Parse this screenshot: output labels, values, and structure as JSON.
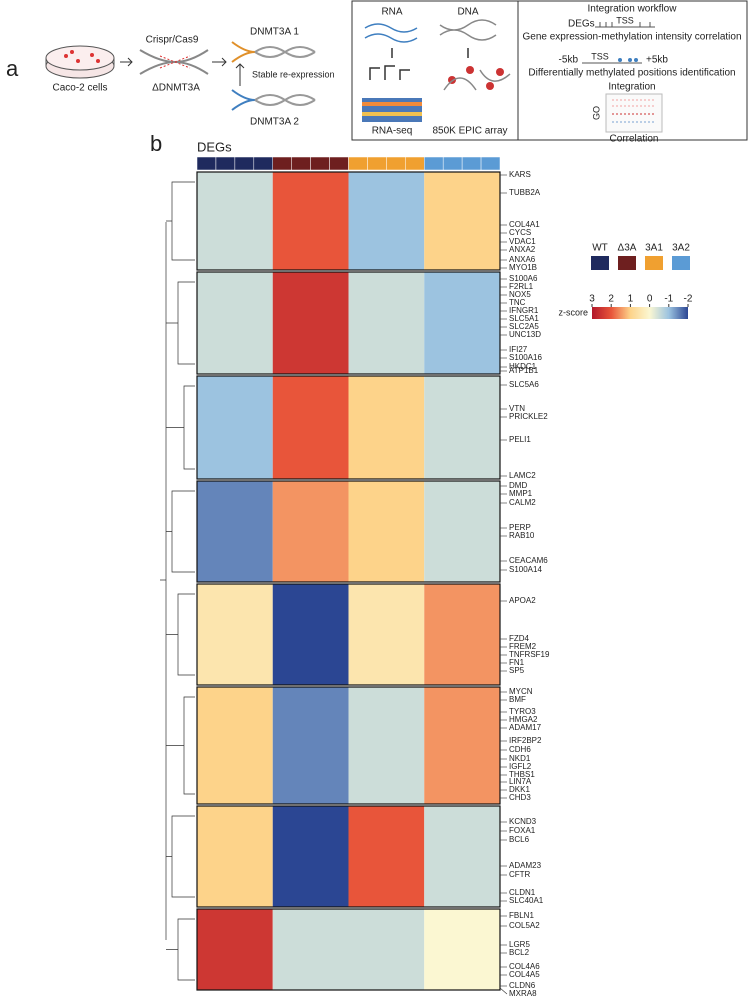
{
  "panel_a": {
    "label": "a",
    "cells": "Caco-2 cells",
    "crispr": "Crispr/Cas9",
    "knockout": "ΔDNMT3A",
    "isoform1": "DNMT3A 1",
    "reexpression": "Stable re-expression",
    "isoform2": "DNMT3A 2",
    "rna": "RNA",
    "dna": "DNA",
    "rnaseq": "RNA-seq",
    "array": "850K EPIC array",
    "workflow": {
      "title": "Integration workflow",
      "degs": "DEGs",
      "tss1": "TSS",
      "corr": "Gene expression-methylation intensity correlation",
      "minus": "-5kb",
      "tss2": "TSS",
      "plus": "+5kb",
      "dmp": "Differentially methylated positions identification",
      "integration": "Integration",
      "go": "GO",
      "correlation": "Correlation"
    }
  },
  "chart_data": {
    "type": "heatmap",
    "panel_label": "b",
    "title": "DEGs",
    "categories": [
      "WT",
      "Δ3A",
      "3A1",
      "3A2"
    ],
    "colors": [
      "#1f2a5e",
      "#6e1f1f",
      "#f0a030",
      "#5b9bd5"
    ],
    "clusters": [
      {
        "values": [
          -0.5,
          2,
          -1,
          1
        ],
        "genes": [
          "KARS",
          "TUBB2A",
          "COL4A1",
          "CYCS",
          "VDAC1",
          "ANXA2",
          "ANXA6",
          "MYO1B"
        ]
      },
      {
        "values": [
          -0.5,
          2.5,
          -0.5,
          -1
        ],
        "genes": [
          "S100A6",
          "F2RL1",
          "NOX5",
          "TNC",
          "IFNGR1",
          "SLC5A1",
          "SLC2A5",
          "UNC13D",
          "IFI27",
          "S100A16",
          "HKDC1",
          "ATP1B1"
        ]
      },
      {
        "values": [
          -1,
          2,
          1,
          -0.5
        ],
        "genes": [
          "SLC5A6",
          "VTN",
          "PRICKLE2",
          "PELI1",
          "LAMC2"
        ]
      },
      {
        "values": [
          -1.5,
          1.5,
          1,
          -0.5
        ],
        "genes": [
          "DMD",
          "MMP1",
          "CALM2",
          "PERP",
          "RAB10",
          "CEACAM6",
          "S100A14"
        ]
      },
      {
        "values": [
          0.5,
          -2,
          0.5,
          1.5
        ],
        "genes": [
          "APOA2",
          "FZD4",
          "FREM2",
          "TNFRSF19",
          "FN1",
          "SP5"
        ]
      },
      {
        "values": [
          1,
          -1.5,
          -0.5,
          1.5
        ],
        "genes": [
          "MYCN",
          "BMF",
          "TYRO3",
          "HMGA2",
          "ADAM17",
          "IRF2BP2",
          "CDH6",
          "NKD1",
          "IGFL2",
          "THBS1",
          "LIN7A",
          "DKK1",
          "CHD3"
        ]
      },
      {
        "values": [
          1,
          -2,
          2,
          -0.5
        ],
        "genes": [
          "KCND3",
          "FOXA1",
          "BCL6",
          "ADAM23",
          "CFTR",
          "CLDN1",
          "SLC40A1"
        ]
      },
      {
        "values": [
          2.5,
          -0.5,
          -0.5,
          0
        ],
        "genes": [
          "FBLN1",
          "COL5A2",
          "LGR5",
          "BCL2",
          "COL4A6",
          "COL4A5",
          "CLDN6",
          "MXRA8"
        ]
      }
    ],
    "colorbar": {
      "label": "z-score",
      "ticks": [
        3,
        2,
        1,
        0,
        -1,
        -2
      ],
      "colormap": [
        "#b2182b",
        "#e8553a",
        "#fdd38a",
        "#fbf7d2",
        "#9cc3e0",
        "#2b4693"
      ]
    }
  }
}
